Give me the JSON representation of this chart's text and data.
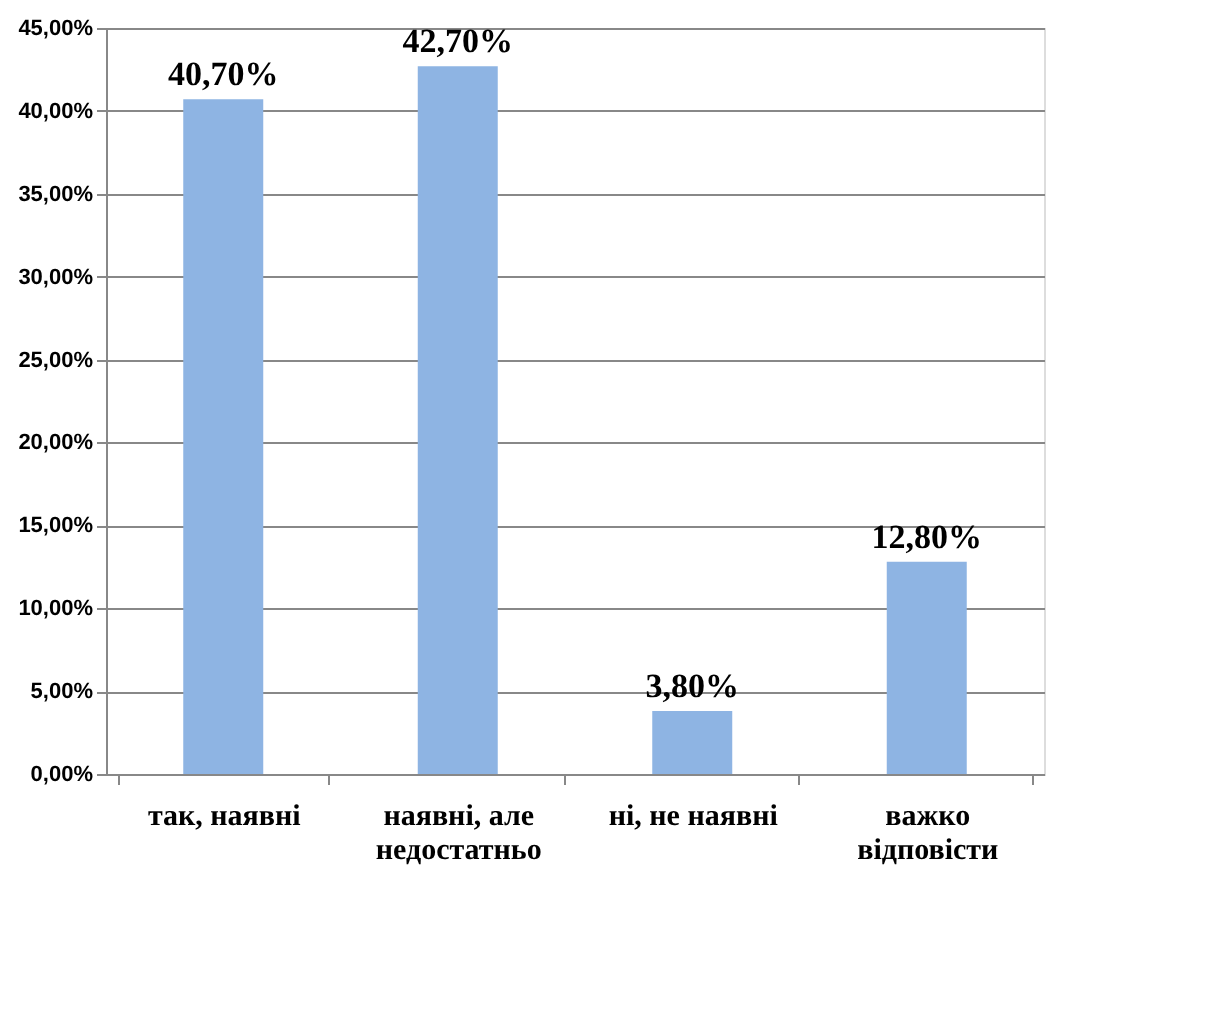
{
  "chart_data": {
    "type": "bar",
    "categories": [
      "так, наявні",
      "наявні, але недостатньо",
      "ні, не наявні",
      "важко відповісти"
    ],
    "values": [
      40.7,
      42.7,
      3.8,
      12.8
    ],
    "color": "#8eb4e3",
    "value_labels": [
      "40,70%",
      "42,70%",
      "3,80%",
      "12,80%"
    ],
    "ylim": [
      0,
      45
    ],
    "yticks": [
      {
        "value": 0,
        "label": "0,00%"
      },
      {
        "value": 5,
        "label": "5,00%"
      },
      {
        "value": 10,
        "label": "10,00%"
      },
      {
        "value": 15,
        "label": "15,00%"
      },
      {
        "value": 20,
        "label": "20,00%"
      },
      {
        "value": 25,
        "label": "25,00%"
      },
      {
        "value": 30,
        "label": "30,00%"
      },
      {
        "value": 35,
        "label": "35,00%"
      },
      {
        "value": 40,
        "label": "40,00%"
      },
      {
        "value": 45,
        "label": "45,00%"
      }
    ],
    "grid": "y"
  }
}
